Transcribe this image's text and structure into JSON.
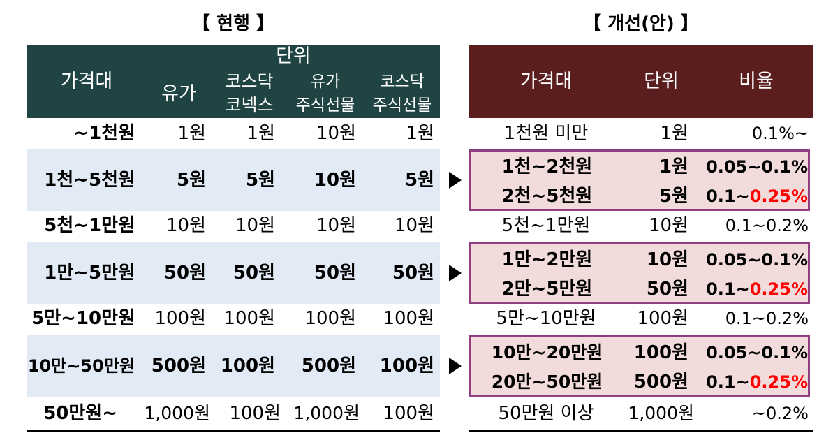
{
  "titles": {
    "current": "【 현행 】",
    "improved": "【 개선(안) 】"
  },
  "left_table": {
    "headers": {
      "price_range": "가격대",
      "unit": "단위",
      "kospi": "유가",
      "kosdaq_line1": "코스닥",
      "kosdaq_line2": "코넥스",
      "futures_line1": "유가",
      "futures_line2": "주식선물",
      "kq_futures_line1": "코스닥",
      "kq_futures_line2": "주식선물"
    },
    "rows": [
      {
        "range": "~1천원",
        "v1": "1원",
        "v2": "1원",
        "v3": "10원",
        "v4": "1원"
      },
      {
        "range": "1천~5천원",
        "v1": "5원",
        "v2": "5원",
        "v3": "10원",
        "v4": "5원"
      },
      {
        "range": "5천~1만원",
        "v1": "10원",
        "v2": "10원",
        "v3": "10원",
        "v4": "10원"
      },
      {
        "range": "1만~5만원",
        "v1": "50원",
        "v2": "50원",
        "v3": "50원",
        "v4": "50원"
      },
      {
        "range": "5만~10만원",
        "v1": "100원",
        "v2": "100원",
        "v3": "100원",
        "v4": "100원"
      },
      {
        "range": "10만~50만원",
        "v1": "500원",
        "v2": "100원",
        "v3": "500원",
        "v4": "100원"
      },
      {
        "range": "50만원~",
        "v1": "1,000원",
        "v2": "100원",
        "v3": "1,000원",
        "v4": "100원"
      }
    ]
  },
  "right_table": {
    "headers": {
      "price_range": "가격대",
      "unit": "단위",
      "ratio": "비율"
    },
    "rows": [
      {
        "range": "1천원 미만",
        "unit": "1원",
        "ratio": "0.1%~"
      },
      {
        "range": "1천~2천원",
        "unit": "1원",
        "ratio": "0.05~0.1%"
      },
      {
        "range": "2천~5천원",
        "unit": "5원",
        "ratio_prefix": "0.1~",
        "ratio_highlight": "0.25%"
      },
      {
        "range": "5천~1만원",
        "unit": "10원",
        "ratio": "0.1~0.2%"
      },
      {
        "range": "1만~2만원",
        "unit": "10원",
        "ratio": "0.05~0.1%"
      },
      {
        "range": "2만~5만원",
        "unit": "50원",
        "ratio_prefix": "0.1~",
        "ratio_highlight": "0.25%"
      },
      {
        "range": "5만~10만원",
        "unit": "100원",
        "ratio": "0.1~0.2%"
      },
      {
        "range": "10만~20만원",
        "unit": "100원",
        "ratio": "0.05~0.1%"
      },
      {
        "range": "20만~50만원",
        "unit": "500원",
        "ratio_prefix": "0.1~",
        "ratio_highlight": "0.25%"
      },
      {
        "range": "50만원 이상",
        "unit": "1,000원",
        "ratio": "~0.2%"
      }
    ]
  },
  "colors": {
    "left_header": "#1f4443",
    "right_header": "#5a1e1e",
    "blue_row": "#e2ebf5",
    "pink_box": "#f2dcdb",
    "box_border": "#8e3f82",
    "highlight": "#ff0000"
  }
}
